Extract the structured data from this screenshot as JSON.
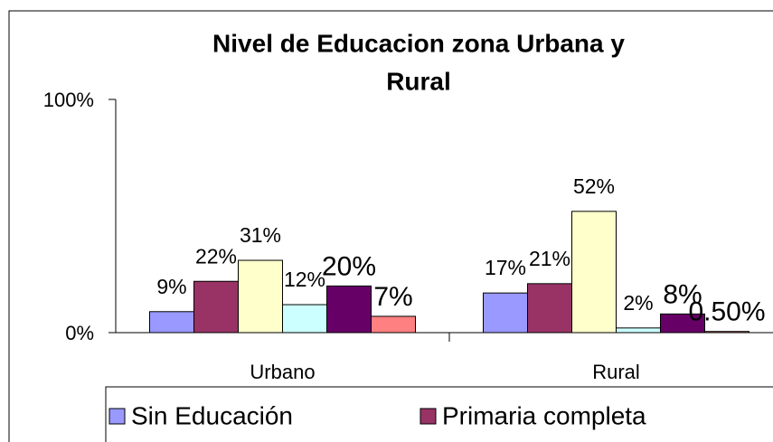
{
  "chart_data": {
    "type": "bar",
    "title": "Nivel de Educacion zona Urbana y Rural",
    "categories": [
      "Urbano",
      "Rural"
    ],
    "series": [
      {
        "name": "Sin Educación",
        "color": "#9999ff",
        "values": [
          9,
          17
        ],
        "value_labels": [
          "9%",
          "17%"
        ]
      },
      {
        "name": "Primaria completa",
        "color": "#993366",
        "values": [
          22,
          21
        ],
        "value_labels": [
          "22%",
          "21%"
        ]
      },
      {
        "color": "#ffffcc",
        "values": [
          31,
          52
        ],
        "value_labels": [
          "31%",
          "52%"
        ]
      },
      {
        "color": "#ccffff",
        "values": [
          12,
          2
        ],
        "value_labels": [
          "12%",
          "2%"
        ]
      },
      {
        "color": "#660066",
        "values": [
          20,
          8
        ],
        "value_labels": [
          "20%",
          "8%"
        ]
      },
      {
        "color": "#ff8080",
        "values": [
          7,
          0.5
        ],
        "value_labels": [
          "7%",
          "0.50%"
        ]
      }
    ],
    "ylim": [
      0,
      100
    ],
    "yticks": [
      {
        "value": 0,
        "label": "0%"
      },
      {
        "value": 100,
        "label": "100%"
      }
    ]
  }
}
